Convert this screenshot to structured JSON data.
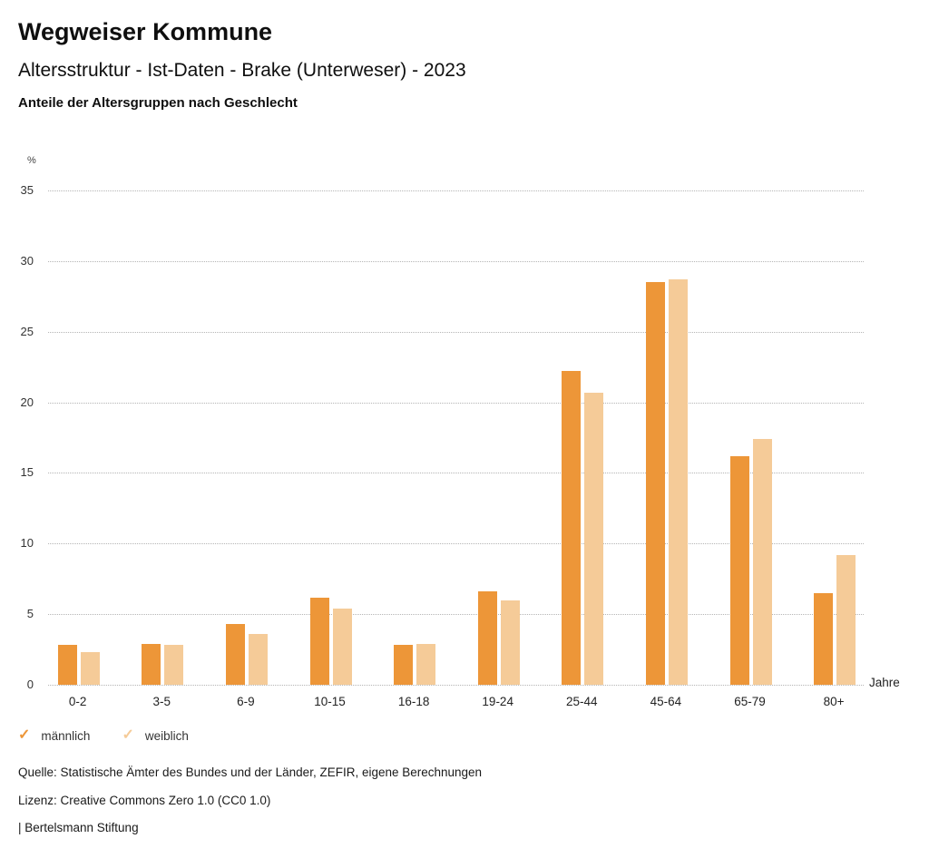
{
  "header": {
    "title": "Wegweiser Kommune",
    "subtitle": "Altersstruktur - Ist-Daten - Brake (Unterweser) - 2023",
    "caption": "Anteile der Altersgruppen nach Geschlecht"
  },
  "chart_data": {
    "type": "bar",
    "title": "Anteile der Altersgruppen nach Geschlecht",
    "y_unit": "%",
    "x_unit": "Jahre",
    "categories": [
      "0-2",
      "3-5",
      "6-9",
      "10-15",
      "16-18",
      "19-24",
      "25-44",
      "45-64",
      "65-79",
      "80+"
    ],
    "series": [
      {
        "name": "männlich",
        "color": "#ED9638",
        "values": [
          2.8,
          2.9,
          4.3,
          6.2,
          2.8,
          6.6,
          22.2,
          28.5,
          16.2,
          6.5
        ]
      },
      {
        "name": "weiblich",
        "color": "#F5CB98",
        "values": [
          2.3,
          2.8,
          3.6,
          5.4,
          2.9,
          6.0,
          20.7,
          28.7,
          17.4,
          9.2
        ]
      }
    ],
    "ylim": [
      0,
      35
    ],
    "ytick_step": 5,
    "grid": "dotted-horizontal",
    "legend_position": "bottom-left"
  },
  "legend": {
    "check_glyph": "✓",
    "items": [
      {
        "label": "männlich",
        "color": "#ED9638"
      },
      {
        "label": "weiblich",
        "color": "#F5CB98"
      }
    ]
  },
  "footer": {
    "source": "Quelle: Statistische Ämter des Bundes und der Länder, ZEFIR, eigene Berechnungen",
    "license": "Lizenz: Creative Commons Zero 1.0 (CC0 1.0)",
    "attribution": "| Bertelsmann Stiftung"
  }
}
